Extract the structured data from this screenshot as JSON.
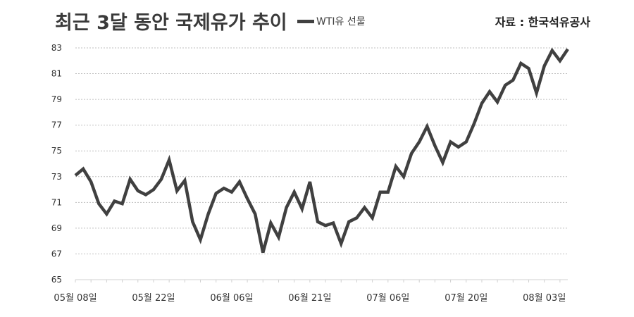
{
  "header": {
    "title": "최근 3달 동안 국제유가 추이",
    "legend_label": "WTI유 선물",
    "source": "자료 : 한국석유공사"
  },
  "colors": {
    "line": "#404040",
    "grid": "#bfbfbf"
  },
  "chart_data": {
    "type": "line",
    "title": "최근 3달 동안 국제유가 추이",
    "xlabel": "",
    "ylabel": "",
    "ylim": [
      65,
      83
    ],
    "yticks": [
      65,
      67,
      69,
      71,
      73,
      75,
      77,
      79,
      81,
      83
    ],
    "x_tick_labels": [
      "05월 08일",
      "05월 22일",
      "06월 06일",
      "06월 21일",
      "07월 06일",
      "07월 20일",
      "08월 03일"
    ],
    "x_tick_indices": [
      0,
      10,
      20,
      30,
      40,
      50,
      60
    ],
    "grid": true,
    "legend_position": "top",
    "series": [
      {
        "name": "WTI유 선물",
        "values": [
          73.1,
          73.6,
          72.6,
          70.9,
          70.1,
          71.1,
          70.9,
          72.8,
          71.9,
          71.6,
          72.0,
          72.8,
          74.3,
          71.9,
          72.7,
          69.5,
          68.1,
          70.1,
          71.7,
          72.1,
          71.8,
          72.6,
          71.3,
          70.1,
          67.1,
          69.4,
          68.3,
          70.6,
          71.8,
          70.5,
          72.6,
          69.5,
          69.2,
          69.4,
          67.8,
          69.5,
          69.8,
          70.6,
          69.8,
          71.8,
          71.8,
          73.8,
          73.0,
          74.8,
          75.7,
          76.9,
          75.4,
          74.1,
          75.7,
          75.3,
          75.7,
          77.1,
          78.7,
          79.6,
          78.8,
          80.1,
          80.5,
          81.8,
          81.4,
          79.5,
          81.6,
          82.8,
          82.0,
          82.9
        ]
      }
    ]
  }
}
